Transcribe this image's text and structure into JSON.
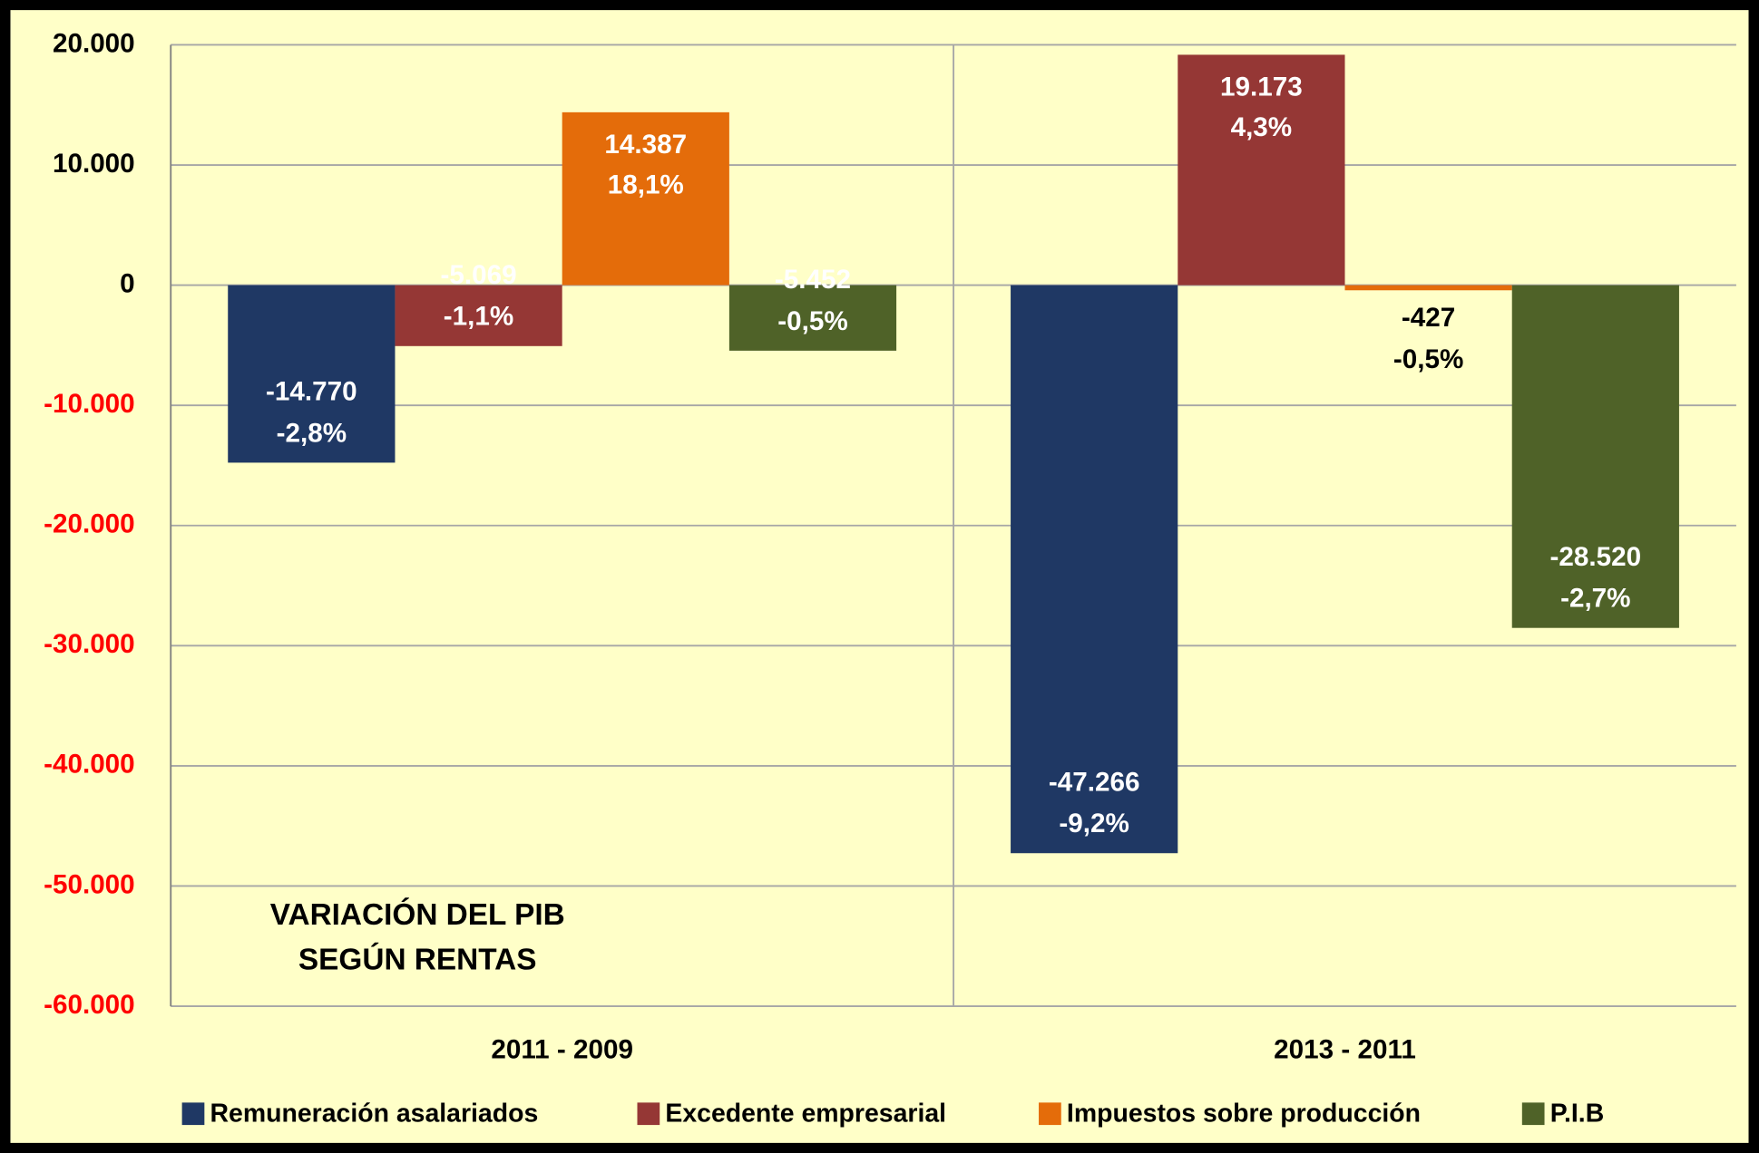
{
  "chart_data": {
    "type": "bar",
    "annotation": [
      "VARIACIÓN DEL PIB",
      "SEGÚN RENTAS"
    ],
    "categories": [
      "2011 - 2009",
      "2013 - 2011"
    ],
    "series": [
      {
        "name": "Remuneración asalariados",
        "color": "#1f3864",
        "values": [
          -14770,
          -47266
        ],
        "value_labels": [
          "-14.770",
          "-47.266"
        ],
        "percent_labels": [
          "-2,8%",
          "-9,2%"
        ]
      },
      {
        "name": "Excedente empresarial",
        "color": "#953735",
        "values": [
          -5069,
          19173
        ],
        "value_labels": [
          "-5.069",
          "19.173"
        ],
        "percent_labels": [
          "-1,1%",
          "4,3%"
        ]
      },
      {
        "name": "Impuestos sobre producción",
        "color": "#e46c0a",
        "values": [
          14387,
          -427
        ],
        "value_labels": [
          "14.387",
          "-427"
        ],
        "percent_labels": [
          "18,1%",
          "-0,5%"
        ]
      },
      {
        "name": "P.I.B",
        "color": "#4f6228",
        "values": [
          -5452,
          -28520
        ],
        "value_labels": [
          "-5.452",
          "-28.520"
        ],
        "percent_labels": [
          "-0,5%",
          "-2,7%"
        ]
      }
    ],
    "ylim": [
      -60000,
      20000
    ],
    "yticks": [
      {
        "value": -60000,
        "label": "-60.000"
      },
      {
        "value": -50000,
        "label": "-50.000"
      },
      {
        "value": -40000,
        "label": "-40.000"
      },
      {
        "value": -30000,
        "label": "-30.000"
      },
      {
        "value": -20000,
        "label": "-20.000"
      },
      {
        "value": -10000,
        "label": "-10.000"
      },
      0,
      {
        "value": 10000,
        "label": "10.000"
      },
      {
        "value": 20000,
        "label": "20.000"
      }
    ],
    "negative_tick_color": "#ff0000",
    "grid": true,
    "legend": "bottom"
  }
}
